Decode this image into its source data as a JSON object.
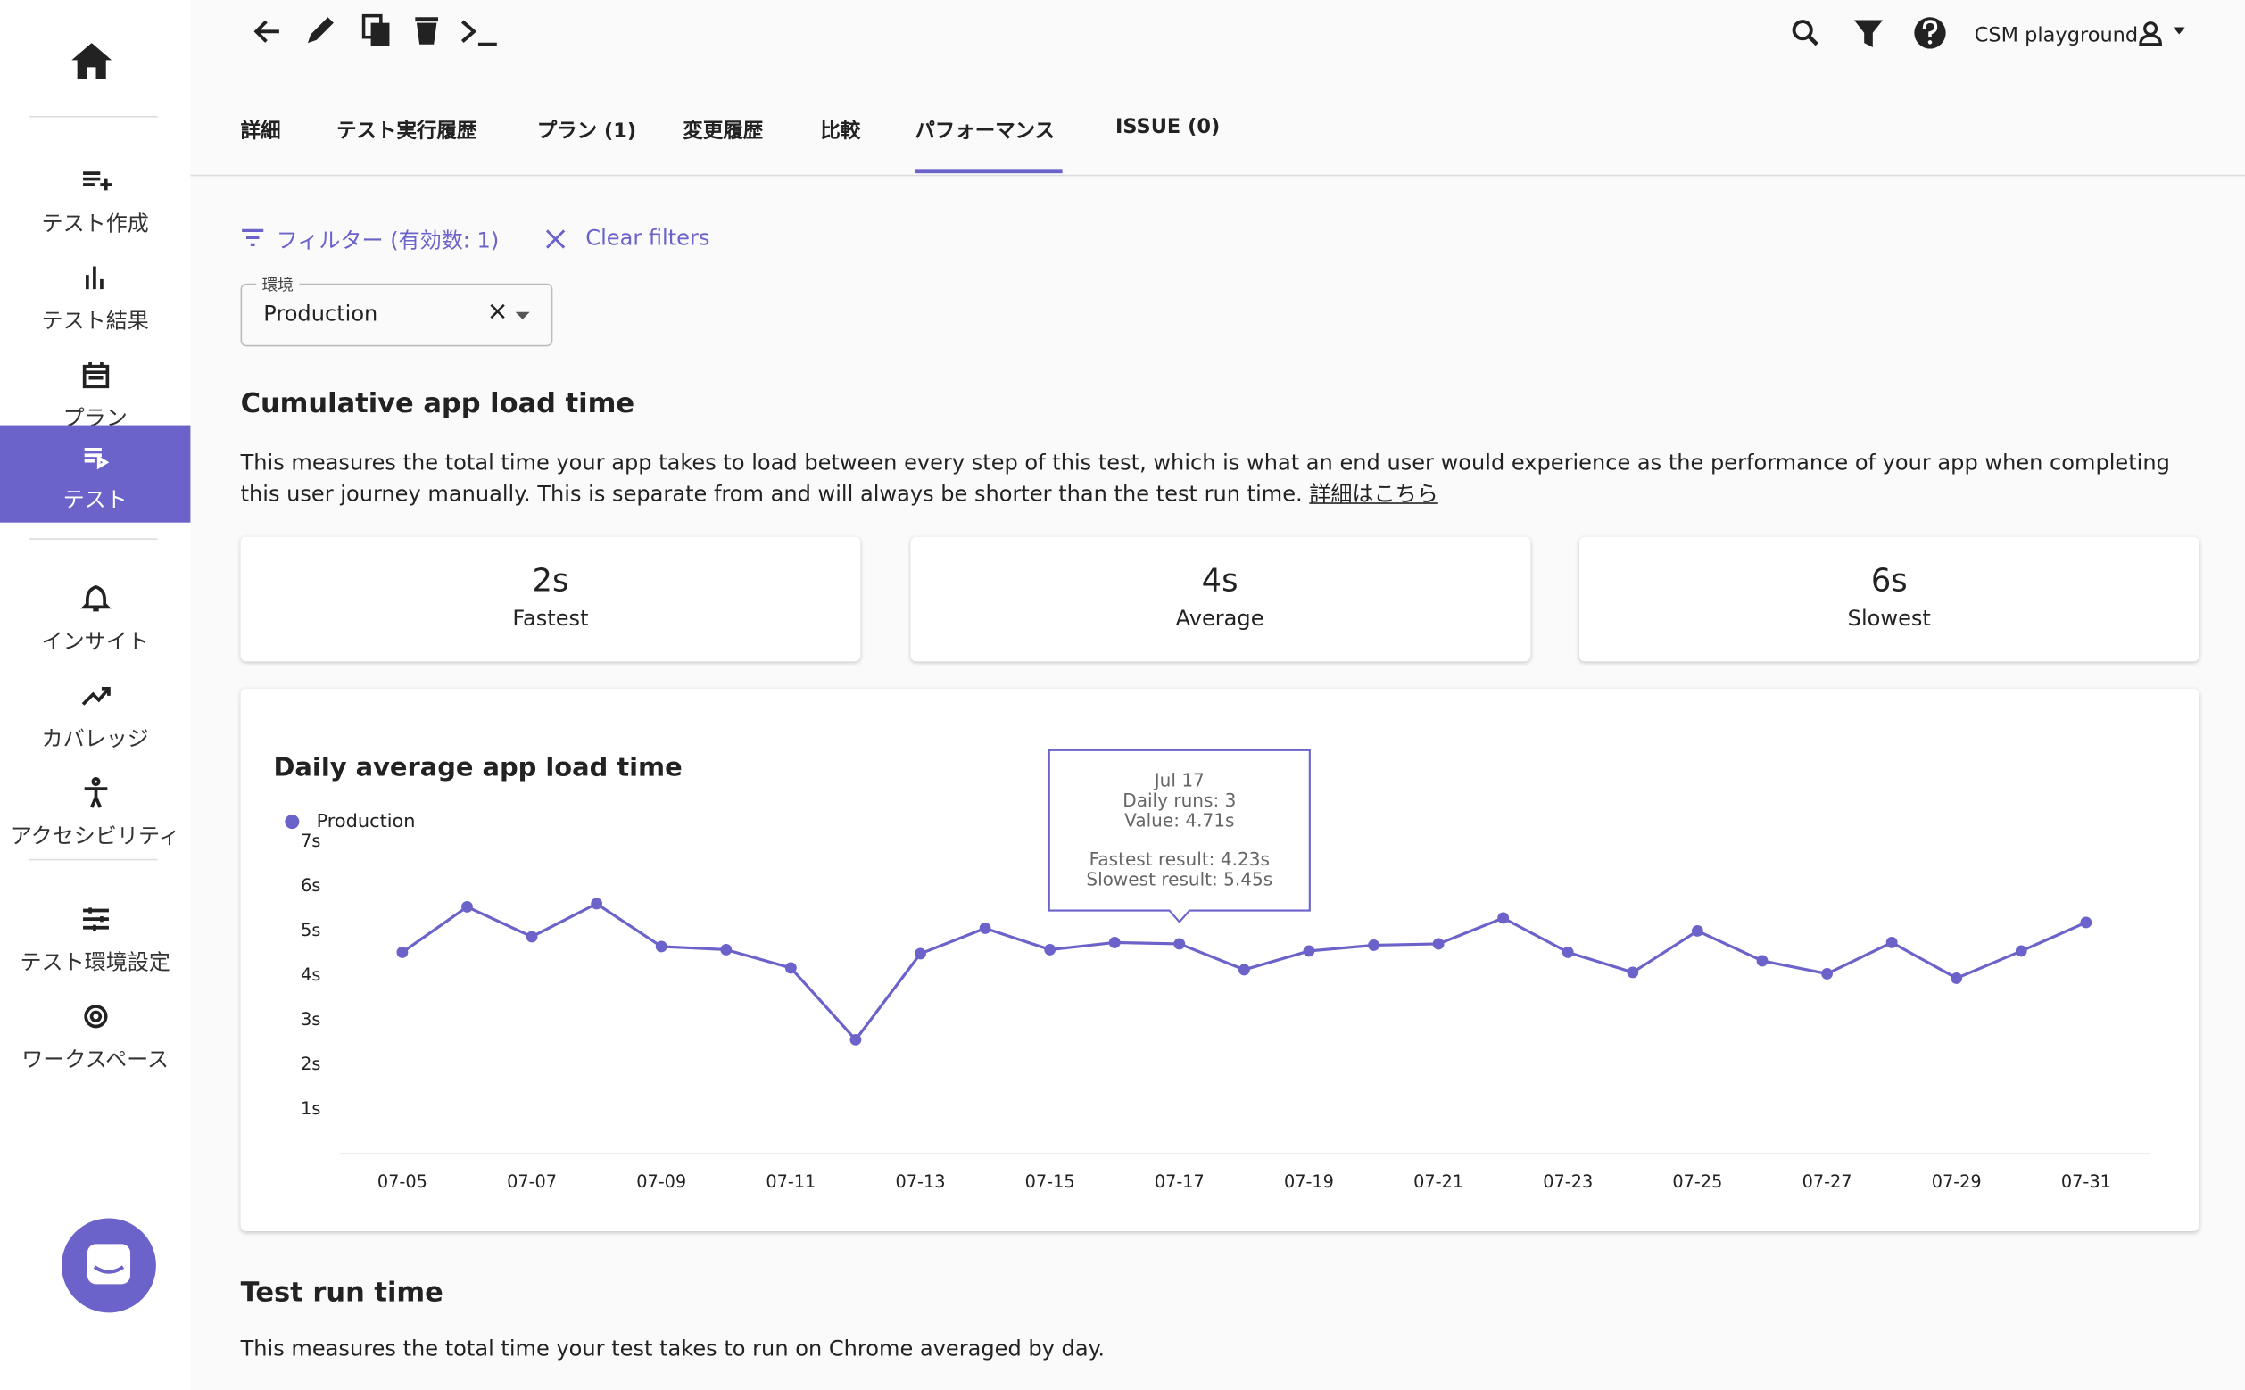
{
  "sidebar": {
    "items": [
      "テスト作成",
      "テスト結果",
      "プラン",
      "テスト",
      "インサイト",
      "カバレッジ",
      "アクセシビリティ",
      "テスト環境設定",
      "ワークスペース"
    ]
  },
  "toolbar": {
    "account": "CSM playground"
  },
  "tabs": [
    "詳細",
    "テスト実行履歴",
    "プラン (1)",
    "変更履歴",
    "比較",
    "パフォーマンス",
    "ISSUE (0)"
  ],
  "filter": {
    "label": "フィルター (有効数: 1)",
    "clear": "Clear filters",
    "field_label": "環境",
    "field_value": "Production"
  },
  "section1": {
    "title": "Cumulative app load time",
    "description": "This measures the total time your app takes to load between every step of this test, which is what an end user would experience as the performance of your app when completing this user journey manually. This is separate from and will always be shorter than the test run time.",
    "link": "詳細はこちら"
  },
  "stats": [
    {
      "value": "2s",
      "label": "Fastest"
    },
    {
      "value": "4s",
      "label": "Average"
    },
    {
      "value": "6s",
      "label": "Slowest"
    }
  ],
  "chart": {
    "type": "line",
    "title": "Daily average app load time",
    "categories": [
      "07-05",
      null,
      "07-07",
      null,
      "07-09",
      null,
      "07-11",
      null,
      "07-13",
      null,
      "07-15",
      null,
      "07-17",
      null,
      "07-19",
      null,
      "07-21",
      null,
      "07-23",
      null,
      "07-25",
      null,
      "07-27",
      null,
      "07-29",
      null,
      "07-31"
    ],
    "series": [
      {
        "name": "Production",
        "color": "#6b63c9",
        "values": [
          4.52,
          5.54,
          4.87,
          5.61,
          4.65,
          4.58,
          4.17,
          2.56,
          4.49,
          5.06,
          4.58,
          4.74,
          4.71,
          4.13,
          4.55,
          4.68,
          4.71,
          5.29,
          4.52,
          4.07,
          5.0,
          4.33,
          4.04,
          4.74,
          3.94,
          4.55,
          5.19
        ]
      }
    ],
    "ylim": [
      0,
      7
    ],
    "yticks": [
      {
        "value": 1,
        "label": "1s"
      },
      {
        "value": 2,
        "label": "2s"
      },
      {
        "value": 3,
        "label": "3s"
      },
      {
        "value": 4,
        "label": "4s"
      },
      {
        "value": 5,
        "label": "5s"
      },
      {
        "value": 6,
        "label": "6s"
      },
      {
        "value": 7,
        "label": "7s"
      }
    ],
    "tooltip": {
      "date": "Jul 17",
      "runs": "Daily runs: 3",
      "value": "Value: 4.71s",
      "fastest": "Fastest result: 4.23s",
      "slowest": "Slowest result: 5.45s"
    }
  },
  "section2": {
    "title": "Test run time",
    "description": "This measures the total time your test takes to run on Chrome averaged by day."
  }
}
